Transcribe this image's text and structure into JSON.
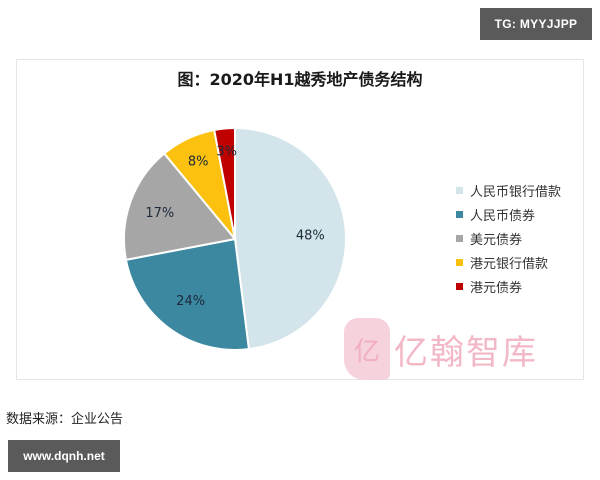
{
  "badges": {
    "top_right": "TG: MYYJJPP",
    "bottom_left": "www.dqnh.net"
  },
  "source_text": "数据来源：企业公告",
  "watermark": {
    "logo_glyph": "亿",
    "text": "亿翰智库"
  },
  "chart_data": {
    "type": "pie",
    "title": "图：2020年H1越秀地产债务结构",
    "categories": [
      "人民币银行借款",
      "人民币债券",
      "美元债券",
      "港元银行借款",
      "港元债券"
    ],
    "values": [
      48,
      24,
      17,
      8,
      3
    ],
    "labels": [
      "48%",
      "24%",
      "17%",
      "8%",
      "3%"
    ],
    "colors": [
      "#d3e5eb",
      "#3d88a1",
      "#a6a6a6",
      "#fcc10e",
      "#c00000"
    ],
    "legend_position": "right",
    "start_angle": "12 o'clock, clockwise"
  }
}
